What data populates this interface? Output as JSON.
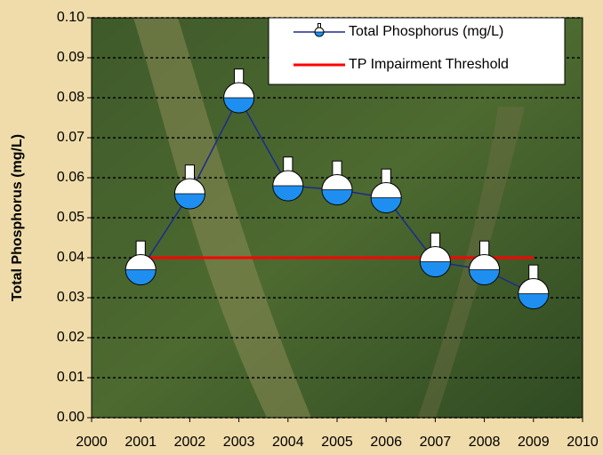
{
  "chart_data": {
    "type": "line",
    "y_label": "Total Phosphorus (mg/L)",
    "xlim": [
      2000,
      2010
    ],
    "xticks": [
      2000,
      2001,
      2002,
      2003,
      2004,
      2005,
      2006,
      2007,
      2008,
      2009,
      2010
    ],
    "ylim": [
      0,
      0.1
    ],
    "yticks": [
      {
        "value": 0,
        "label": "0.00"
      },
      {
        "value": 0.01,
        "label": "0.01"
      },
      {
        "value": 0.02,
        "label": "0.02"
      },
      {
        "value": 0.03,
        "label": "0.03"
      },
      {
        "value": 0.04,
        "label": "0.04"
      },
      {
        "value": 0.05,
        "label": "0.05"
      },
      {
        "value": 0.06,
        "label": "0.06"
      },
      {
        "value": 0.07,
        "label": "0.07"
      },
      {
        "value": 0.08,
        "label": "0.08"
      },
      {
        "value": 0.09,
        "label": "0.09"
      },
      {
        "value": 0.1,
        "label": "0.10"
      }
    ],
    "grid": true,
    "legend": "upper right",
    "series": [
      {
        "name": "Total Phosphorus (mg/L)",
        "color": "#1c2a8c",
        "marker": "flask",
        "x": [
          2001,
          2002,
          2003,
          2004,
          2005,
          2006,
          2007,
          2008,
          2009
        ],
        "values": [
          0.037,
          0.056,
          0.08,
          0.058,
          0.057,
          0.055,
          0.039,
          0.037,
          0.031
        ]
      },
      {
        "name": "TP Impairment Threshold",
        "color": "#ff0000",
        "x": [
          2001,
          2009
        ],
        "values": [
          0.04,
          0.04
        ]
      }
    ]
  }
}
